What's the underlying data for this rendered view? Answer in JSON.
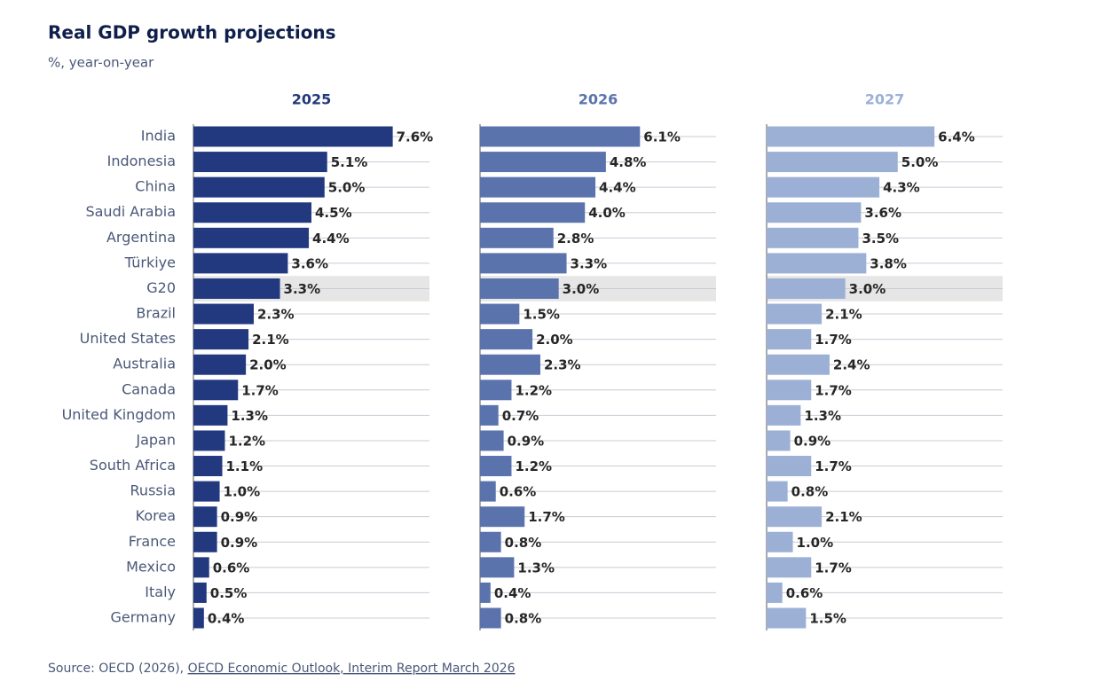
{
  "chart_data": {
    "type": "bar",
    "orientation": "horizontal",
    "title": "Real GDP growth projections",
    "subtitle": "%, year-on-year",
    "categories": [
      "India",
      "Indonesia",
      "China",
      "Saudi Arabia",
      "Argentina",
      "Türkiye",
      "G20",
      "Brazil",
      "United States",
      "Australia",
      "Canada",
      "United Kingdom",
      "Japan",
      "South Africa",
      "Russia",
      "Korea",
      "France",
      "Mexico",
      "Italy",
      "Germany"
    ],
    "highlight": "G20",
    "xlim": [
      0,
      9
    ],
    "series": [
      {
        "name": "2025",
        "color": "#22387f",
        "values": [
          7.6,
          5.1,
          5.0,
          4.5,
          4.4,
          3.6,
          3.3,
          2.3,
          2.1,
          2.0,
          1.7,
          1.3,
          1.2,
          1.1,
          1.0,
          0.9,
          0.9,
          0.6,
          0.5,
          0.4
        ],
        "value_labels": [
          "7.6%",
          "5.1%",
          "5.0%",
          "4.5%",
          "4.4%",
          "3.6%",
          "3.3%",
          "2.3%",
          "2.1%",
          "2.0%",
          "1.7%",
          "1.3%",
          "1.2%",
          "1.1%",
          "1.0%",
          "0.9%",
          "0.9%",
          "0.6%",
          "0.5%",
          "0.4%"
        ]
      },
      {
        "name": "2026",
        "color": "#5b73ad",
        "values": [
          6.1,
          4.8,
          4.4,
          4.0,
          2.8,
          3.3,
          3.0,
          1.5,
          2.0,
          2.3,
          1.2,
          0.7,
          0.9,
          1.2,
          0.6,
          1.7,
          0.8,
          1.3,
          0.4,
          0.8
        ],
        "value_labels": [
          "6.1%",
          "4.8%",
          "4.4%",
          "4.0%",
          "2.8%",
          "3.3%",
          "3.0%",
          "1.5%",
          "2.0%",
          "2.3%",
          "1.2%",
          "0.7%",
          "0.9%",
          "1.2%",
          "0.6%",
          "1.7%",
          "0.8%",
          "1.3%",
          "0.4%",
          "0.8%"
        ]
      },
      {
        "name": "2027",
        "color": "#9cb0d6",
        "values": [
          6.4,
          5.0,
          4.3,
          3.6,
          3.5,
          3.8,
          3.0,
          2.1,
          1.7,
          2.4,
          1.7,
          1.3,
          0.9,
          1.7,
          0.8,
          2.1,
          1.0,
          1.7,
          0.6,
          1.5
        ],
        "value_labels": [
          "6.4%",
          "5.0%",
          "4.3%",
          "3.6%",
          "3.5%",
          "3.8%",
          "3.0%",
          "2.1%",
          "1.7%",
          "2.4%",
          "1.7%",
          "1.3%",
          "0.9%",
          "1.7%",
          "0.8%",
          "2.1%",
          "1.0%",
          "1.7%",
          "0.6%",
          "1.5%"
        ]
      }
    ],
    "source": "Source: OECD (2026), ",
    "source_link": "OECD Economic Outlook, Interim Report March 2026"
  }
}
